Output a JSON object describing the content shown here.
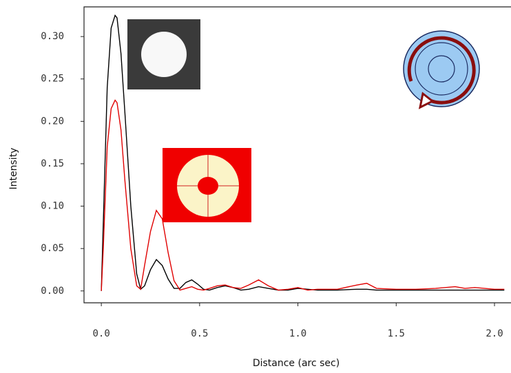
{
  "chart_data": {
    "type": "line",
    "xlabel": "Distance (arc sec)",
    "ylabel": "Intensity",
    "x": [
      0,
      0.01,
      0.03,
      0.05,
      0.07,
      0.08,
      0.1,
      0.12,
      0.15,
      0.18,
      0.2,
      0.22,
      0.25,
      0.28,
      0.31,
      0.34,
      0.37,
      0.4,
      0.43,
      0.46,
      0.49,
      0.52,
      0.55,
      0.59,
      0.63,
      0.67,
      0.71,
      0.75,
      0.8,
      0.85,
      0.9,
      0.95,
      1.0,
      1.05,
      1.1,
      1.2,
      1.3,
      1.35,
      1.4,
      1.5,
      1.6,
      1.7,
      1.8,
      1.85,
      1.9,
      2.0,
      2.05
    ],
    "series": [
      {
        "color": "#000000",
        "values": [
          0,
          0.08,
          0.24,
          0.31,
          0.325,
          0.322,
          0.28,
          0.21,
          0.1,
          0.02,
          0.002,
          0.006,
          0.025,
          0.037,
          0.03,
          0.014,
          0.003,
          0.003,
          0.01,
          0.013,
          0.008,
          0.002,
          0.001,
          0.004,
          0.006,
          0.004,
          0.001,
          0.002,
          0.005,
          0.003,
          0.001,
          0.001,
          0.003,
          0.002,
          0.001,
          0.001,
          0.002,
          0.002,
          0.001,
          0.001,
          0.001,
          0.001,
          0.001,
          0.001,
          0.001,
          0.001,
          0.001
        ]
      },
      {
        "color": "#e00000",
        "values": [
          0,
          0.05,
          0.17,
          0.215,
          0.225,
          0.222,
          0.19,
          0.13,
          0.05,
          0.006,
          0.002,
          0.03,
          0.07,
          0.095,
          0.085,
          0.045,
          0.012,
          0.001,
          0.003,
          0.005,
          0.002,
          0.001,
          0.003,
          0.006,
          0.007,
          0.004,
          0.003,
          0.007,
          0.013,
          0.006,
          0.001,
          0.002,
          0.004,
          0.001,
          0.002,
          0.002,
          0.007,
          0.009,
          0.003,
          0.002,
          0.002,
          0.003,
          0.005,
          0.003,
          0.004,
          0.002,
          0.002
        ]
      }
    ],
    "xlim": [
      -0.088,
      2.084
    ],
    "ylim": [
      -0.014,
      0.335
    ],
    "xticks": [
      {
        "value": 0,
        "label": "0.0"
      },
      0.5,
      {
        "value": 1,
        "label": "1.0"
      },
      1.5,
      {
        "value": 2,
        "label": "2.0"
      }
    ],
    "yticks": [
      {
        "value": 0,
        "label": "0.00"
      },
      0.05,
      {
        "value": 0.1,
        "label": "0.10"
      },
      0.15,
      {
        "value": 0.2,
        "label": "0.20"
      },
      0.25,
      {
        "value": 0.3,
        "label": "0.30"
      }
    ]
  }
}
